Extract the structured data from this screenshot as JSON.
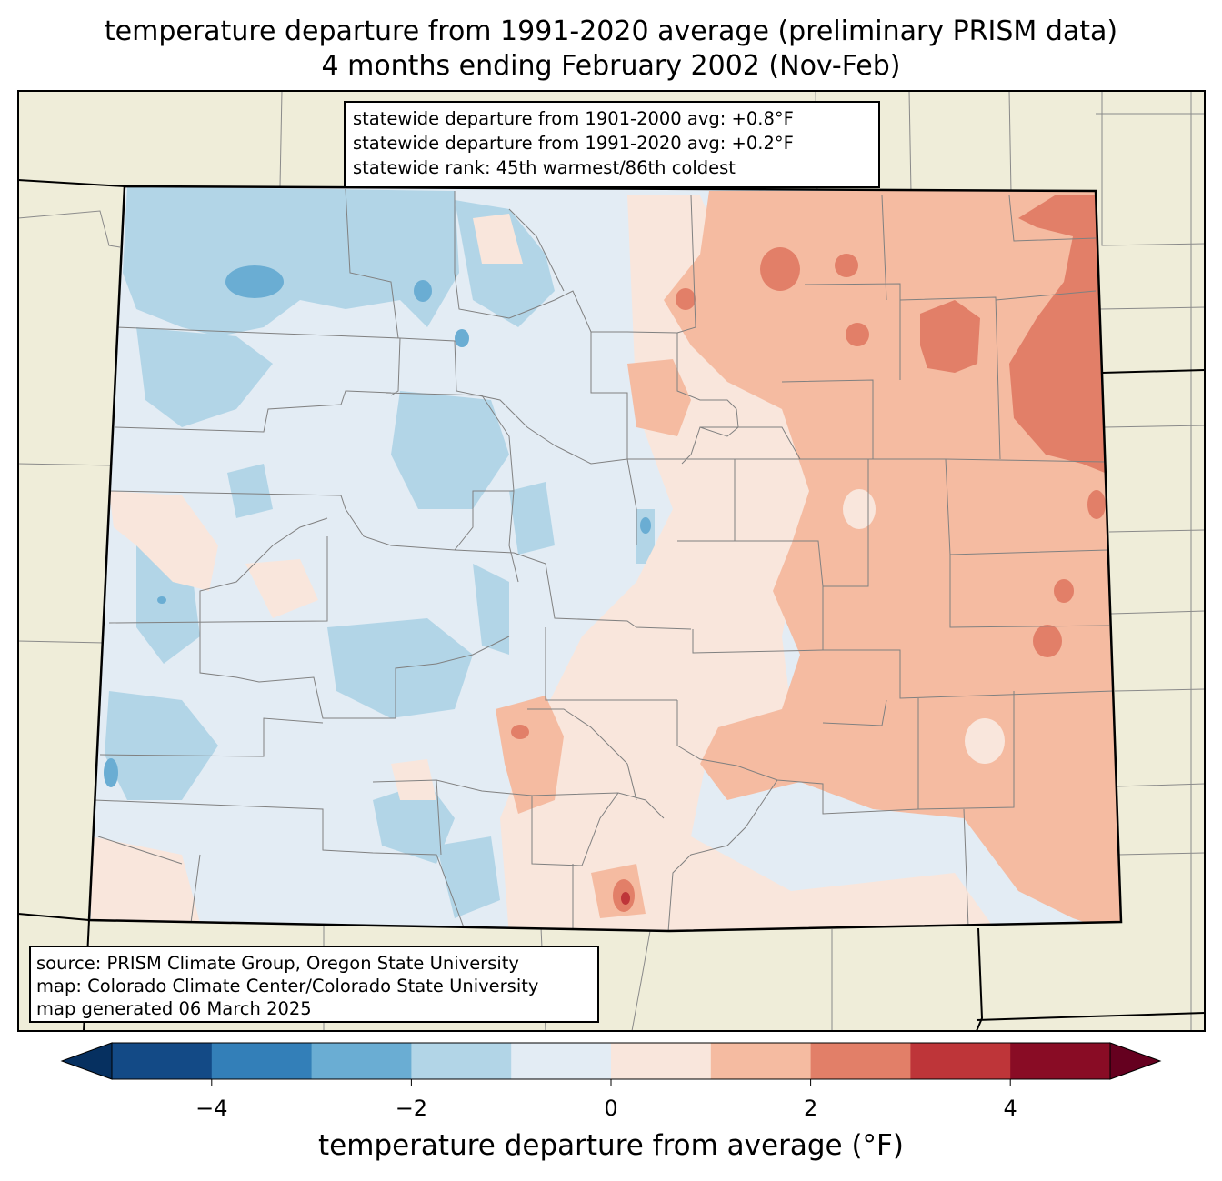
{
  "title": {
    "line1": "temperature departure from 1991-2020 average (preliminary PRISM data)",
    "line2": "4 months ending February 2002 (Nov-Feb)"
  },
  "stats": {
    "line1": "statewide departure from 1901-2000 avg: +0.8°F",
    "line2": "statewide departure from 1991-2020 avg: +0.2°F",
    "line3": "statewide rank: 45th warmest/86th coldest"
  },
  "source": {
    "line1": "source: PRISM Climate Group, Oregon State University",
    "line2": "map: Colorado Climate Center/Colorado State University",
    "line3": "map generated 06 March 2025"
  },
  "colorbar": {
    "label": "temperature departure from average (°F)",
    "ticks": [
      "−4",
      "−2",
      "0",
      "2",
      "4"
    ],
    "range": [
      -5,
      5
    ],
    "bins": [
      {
        "from": -5,
        "to": -4,
        "color": "#134a86"
      },
      {
        "from": -4,
        "to": -3,
        "color": "#337fb8"
      },
      {
        "from": -3,
        "to": -2,
        "color": "#6aadd3"
      },
      {
        "from": -2,
        "to": -1,
        "color": "#b2d5e7"
      },
      {
        "from": -1,
        "to": 0,
        "color": "#e3ecf4"
      },
      {
        "from": 0,
        "to": 1,
        "color": "#f9e6dc"
      },
      {
        "from": 1,
        "to": 2,
        "color": "#f5bba1"
      },
      {
        "from": 2,
        "to": 3,
        "color": "#e27f68"
      },
      {
        "from": 3,
        "to": 4,
        "color": "#be3539"
      },
      {
        "from": 4,
        "to": 5,
        "color": "#890c25"
      }
    ],
    "under_color": "#063060",
    "over_color": "#65001f"
  },
  "colors": {
    "land": "#efedd9",
    "county_lines": "#8a8a8a",
    "state_lines": "#000000"
  }
}
